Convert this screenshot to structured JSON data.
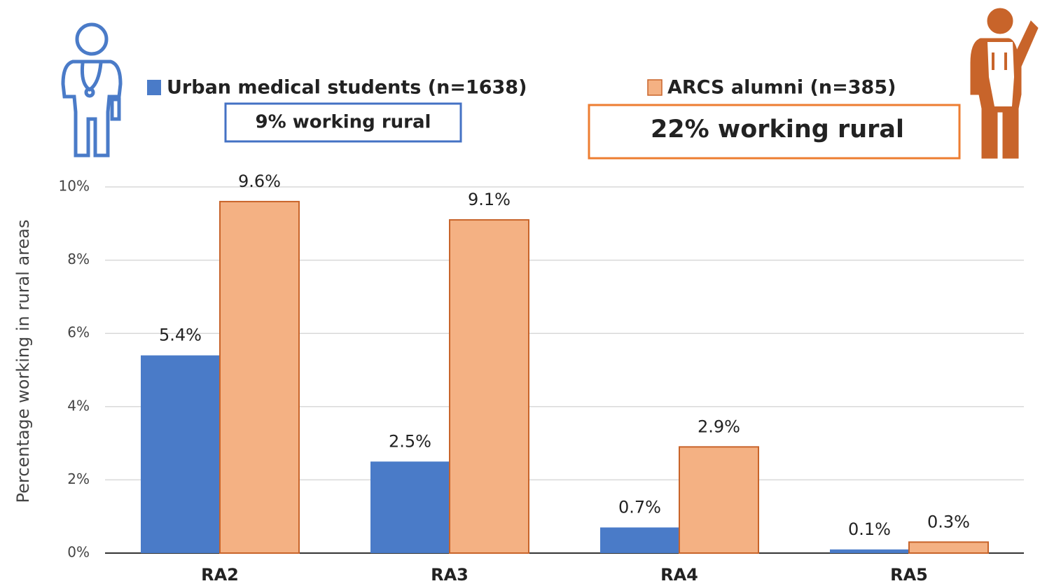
{
  "chart_data": {
    "type": "bar",
    "categories": [
      "RA2",
      "RA3",
      "RA4",
      "RA5"
    ],
    "series": [
      {
        "name": "Urban medical students (n=1638)",
        "color": "#4a7bc8",
        "values": [
          5.4,
          2.5,
          0.7,
          0.1
        ],
        "value_labels": [
          "5.4%",
          "2.5%",
          "0.7%",
          "0.1%"
        ]
      },
      {
        "name": "ARCS alumni (n=385)",
        "color": "#f4b183",
        "values": [
          9.6,
          9.1,
          2.9,
          0.3
        ],
        "value_labels": [
          "9.6%",
          "9.1%",
          "2.9%",
          "0.3%"
        ]
      }
    ],
    "annotations": [
      "9% working rural",
      "22% working rural"
    ],
    "y_label": "Percentage working in rural areas",
    "ylim": [
      0,
      10
    ],
    "yticks": [
      {
        "value": 0,
        "label": "0%"
      },
      {
        "value": 2,
        "label": "2%"
      },
      {
        "value": 4,
        "label": "4%"
      },
      {
        "value": 6,
        "label": "6%"
      },
      {
        "value": 8,
        "label": "8%"
      },
      {
        "value": 10,
        "label": "10%"
      }
    ],
    "grid": true
  }
}
